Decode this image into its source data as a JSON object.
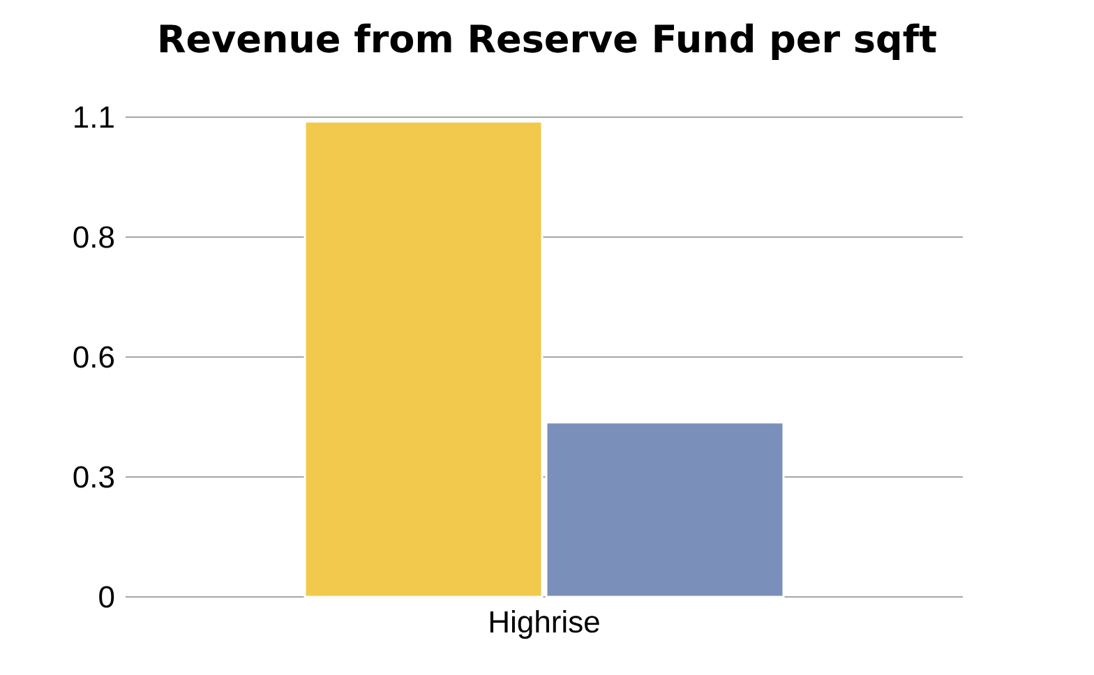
{
  "chart_data": {
    "type": "bar",
    "title": "Revenue from Reserve Fund per sqft",
    "categories": [
      "Highrise"
    ],
    "series": [
      {
        "color": "#f2c94c",
        "values": [
          1.09
        ]
      },
      {
        "color": "#7b8fbb",
        "values": [
          0.4
        ]
      }
    ],
    "ylim": [
      0,
      1.1
    ],
    "yticks": [
      {
        "value": 0,
        "label": "0"
      },
      {
        "value": 0.275,
        "label": "0.3"
      },
      {
        "value": 0.55,
        "label": "0.6"
      },
      {
        "value": 0.825,
        "label": "0.8"
      },
      {
        "value": 1.1,
        "label": "1.1"
      }
    ],
    "grid": "y"
  }
}
